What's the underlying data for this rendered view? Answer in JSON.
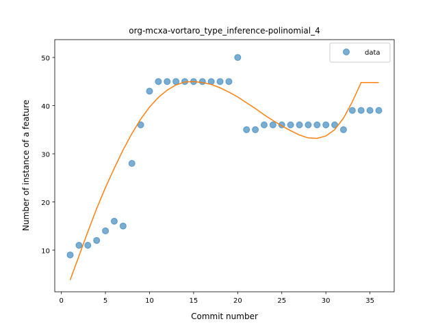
{
  "chart_data": {
    "type": "scatter",
    "title": "org-mcxa-vortaro_type_inference-polinomial_4",
    "xlabel": "Commit number",
    "ylabel": "Number of instance of a feature",
    "xlim": [
      -0.75,
      37.75
    ],
    "ylim": [
      1.35,
      53.7
    ],
    "xticks": [
      0,
      5,
      10,
      15,
      20,
      25,
      30,
      35
    ],
    "yticks": [
      10,
      20,
      30,
      40,
      50
    ],
    "grid": false,
    "legend": {
      "position": "top-right",
      "entries": [
        "data"
      ]
    },
    "series": [
      {
        "name": "data",
        "kind": "scatter",
        "color": "#1f77b4",
        "x": [
          1,
          2,
          3,
          4,
          5,
          6,
          7,
          8,
          9,
          10,
          11,
          12,
          13,
          14,
          15,
          16,
          17,
          18,
          19,
          20,
          21,
          22,
          23,
          24,
          25,
          26,
          27,
          28,
          29,
          30,
          31,
          32,
          33,
          34,
          35,
          36
        ],
        "y": [
          9,
          11,
          11,
          12,
          14,
          16,
          15,
          28,
          36,
          43,
          45,
          45,
          45,
          45,
          45,
          45,
          45,
          45,
          45,
          50,
          35,
          35,
          36,
          36,
          36,
          36,
          36,
          36,
          36,
          36,
          36,
          35,
          39,
          39,
          39,
          39
        ]
      },
      {
        "kind": "line",
        "color": "#ff7f0e",
        "x": [
          1,
          2,
          3,
          4,
          5,
          6,
          7,
          8,
          9,
          10,
          11,
          12,
          13,
          14,
          15,
          16,
          17,
          18,
          19,
          20,
          21,
          22,
          23,
          24,
          25,
          26,
          27,
          28,
          29,
          30,
          31,
          32,
          33,
          34,
          35,
          36
        ],
        "y": [
          3.8,
          8.8,
          13.8,
          18.6,
          23.0,
          27.0,
          30.8,
          34.2,
          37.2,
          39.7,
          41.7,
          43.2,
          44.3,
          44.9,
          45.0,
          44.8,
          44.4,
          43.7,
          42.8,
          41.8,
          40.6,
          39.4,
          38.1,
          36.9,
          35.8,
          34.8,
          33.9,
          33.3,
          33.2,
          33.7,
          35.0,
          37.4,
          40.8,
          44.8,
          44.8,
          44.8
        ]
      }
    ]
  }
}
